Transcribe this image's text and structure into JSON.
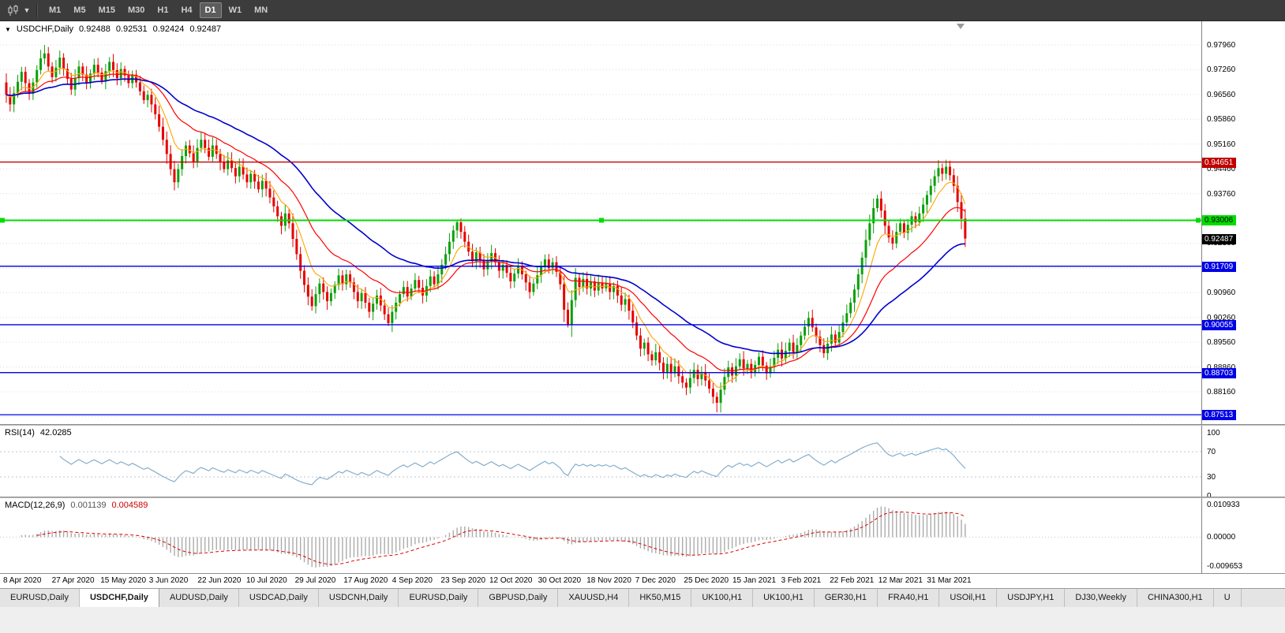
{
  "toolbar": {
    "timeframes": [
      {
        "label": "M1"
      },
      {
        "label": "M5"
      },
      {
        "label": "M15"
      },
      {
        "label": "M30"
      },
      {
        "label": "H1"
      },
      {
        "label": "H4"
      },
      {
        "label": "D1"
      },
      {
        "label": "W1"
      },
      {
        "label": "MN"
      }
    ],
    "active_timeframe": "D1"
  },
  "chart": {
    "symbol": "USDCHF,Daily",
    "open": "0.92488",
    "high": "0.92531",
    "low": "0.92424",
    "close": "0.92487",
    "current_price": "0.92487",
    "price_axis_ticks": [
      "0.97960",
      "0.97260",
      "0.96560",
      "0.95860",
      "0.95160",
      "0.94460",
      "0.93760",
      "0.93060",
      "0.92360",
      "0.91660",
      "0.90960",
      "0.90260",
      "0.89560",
      "0.88860",
      "0.88160",
      "0.87460"
    ],
    "hlines": [
      {
        "value": 0.94651,
        "label": "0.94651",
        "color": "#C00000",
        "text_color": "#ffffff",
        "handles": false
      },
      {
        "value": 0.93006,
        "label": "0.93006",
        "color": "#00DD00",
        "text_color": "#000000",
        "handles": true
      },
      {
        "value": 0.91709,
        "label": "0.91709",
        "color": "#0000E6",
        "text_color": "#ffffff",
        "handles": false
      },
      {
        "value": 0.90055,
        "label": "0.90055",
        "color": "#0000E6",
        "text_color": "#ffffff",
        "handles": false
      },
      {
        "value": 0.88703,
        "label": "0.88703",
        "color": "#0000E6",
        "text_color": "#ffffff",
        "handles": false
      },
      {
        "value": 0.87513,
        "label": "0.87513",
        "color": "#0000E6",
        "text_color": "#ffffff",
        "handles": false
      }
    ],
    "date_ticks": [
      "8 Apr 2020",
      "27 Apr 2020",
      "15 May 2020",
      "3 Jun 2020",
      "22 Jun 2020",
      "10 Jul 2020",
      "29 Jul 2020",
      "17 Aug 2020",
      "4 Sep 2020",
      "23 Sep 2020",
      "12 Oct 2020",
      "30 Oct 2020",
      "18 Nov 2020",
      "7 Dec 2020",
      "25 Dec 2020",
      "15 Jan 2021",
      "3 Feb 2021",
      "22 Feb 2021",
      "12 Mar 2021",
      "31 Mar 2021"
    ],
    "candles": {
      "first_open": 0.969,
      "closes": [
        0.9655,
        0.9628,
        0.966,
        0.9692,
        0.972,
        0.9688,
        0.9658,
        0.969,
        0.9725,
        0.9758,
        0.9772,
        0.9735,
        0.9705,
        0.9732,
        0.976,
        0.9728,
        0.97,
        0.967,
        0.9702,
        0.9735,
        0.9712,
        0.9688,
        0.9715,
        0.974,
        0.9718,
        0.9695,
        0.9722,
        0.9748,
        0.9725,
        0.9702,
        0.9728,
        0.971,
        0.9688,
        0.9712,
        0.969,
        0.9665,
        0.964,
        0.9655,
        0.9628,
        0.96,
        0.9565,
        0.9528,
        0.9488,
        0.9445,
        0.9408,
        0.9445,
        0.9482,
        0.9512,
        0.949,
        0.9465,
        0.9505,
        0.9528,
        0.9505,
        0.948,
        0.9512,
        0.9488,
        0.9465,
        0.9445,
        0.947,
        0.9448,
        0.9425,
        0.9452,
        0.943,
        0.9408,
        0.9432,
        0.941,
        0.9388,
        0.9412,
        0.939,
        0.9365,
        0.934,
        0.9312,
        0.9285,
        0.932,
        0.9292,
        0.9248,
        0.9205,
        0.9158,
        0.9118,
        0.9085,
        0.9058,
        0.9092,
        0.9122,
        0.9098,
        0.9072,
        0.9095,
        0.9118,
        0.9145,
        0.912,
        0.9148,
        0.9125,
        0.9098,
        0.9072,
        0.9095,
        0.9068,
        0.9042,
        0.9065,
        0.9088,
        0.906,
        0.9035,
        0.901,
        0.9042,
        0.9068,
        0.9092,
        0.9112,
        0.9085,
        0.9108,
        0.9132,
        0.911,
        0.9088,
        0.9115,
        0.9142,
        0.912,
        0.9148,
        0.9175,
        0.9205,
        0.924,
        0.9272,
        0.9295,
        0.9268,
        0.924,
        0.9212,
        0.9185,
        0.921,
        0.9188,
        0.9162,
        0.9185,
        0.9208,
        0.9182,
        0.9158,
        0.9175,
        0.9152,
        0.9128,
        0.915,
        0.9172,
        0.9148,
        0.9125,
        0.9098,
        0.9122,
        0.9145,
        0.9168,
        0.919,
        0.9165,
        0.9182,
        0.9155,
        0.912,
        0.9048,
        0.9005,
        0.9075,
        0.9138,
        0.9112,
        0.9135,
        0.9108,
        0.9128,
        0.9102,
        0.9125,
        0.9108,
        0.9122,
        0.9098,
        0.9115,
        0.9088,
        0.9062,
        0.9078,
        0.9045,
        0.9012,
        0.8975,
        0.8938,
        0.8955,
        0.8922,
        0.8905,
        0.8928,
        0.8898,
        0.8872,
        0.8895,
        0.8868,
        0.8888,
        0.886,
        0.8842,
        0.8828,
        0.8855,
        0.8878,
        0.8852,
        0.8872,
        0.8848,
        0.8825,
        0.8802,
        0.8785,
        0.8822,
        0.8858,
        0.8885,
        0.8862,
        0.8888,
        0.8908,
        0.8882,
        0.8895,
        0.887,
        0.8892,
        0.8915,
        0.889,
        0.8868,
        0.8888,
        0.8912,
        0.8935,
        0.891,
        0.8932,
        0.8955,
        0.8928,
        0.8948,
        0.8975,
        0.9,
        0.9025,
        0.8998,
        0.8972,
        0.8948,
        0.8925,
        0.8952,
        0.8978,
        0.8955,
        0.8985,
        0.9012,
        0.9038,
        0.9068,
        0.9105,
        0.9148,
        0.9195,
        0.9245,
        0.9292,
        0.9335,
        0.9362,
        0.9328,
        0.9285,
        0.9252,
        0.9235,
        0.9268,
        0.9292,
        0.9265,
        0.9288,
        0.9312,
        0.9295,
        0.932,
        0.9345,
        0.9372,
        0.9398,
        0.9425,
        0.9448,
        0.9432,
        0.9452,
        0.9428,
        0.9398,
        0.9352,
        0.9305,
        0.9249
      ],
      "extra_wicks": {
        "9": {
          "high": 0.9782
        },
        "10": {
          "high": 0.9796
        },
        "14": {
          "high": 0.978
        },
        "44": {
          "low": 0.9385
        },
        "100": {
          "low": 0.9002
        },
        "118": {
          "high": 0.9302
        },
        "147": {
          "low": 0.8998
        },
        "186": {
          "low": 0.8758
        },
        "244": {
          "high": 0.9471
        }
      }
    },
    "colors": {
      "up": "#0AA00A",
      "down": "#E60000",
      "ma_fast": "#FFA500",
      "ma_mid": "#FF0000",
      "ma_slow": "#0000CD",
      "grid": "#DCDCDC",
      "rsi_line": "#86AECC",
      "rsi_levels": "#BCC7D1",
      "macd_hist": "#ABABAB",
      "macd_signal": "#E00000",
      "current_price_bg": "#000000",
      "current_price_text": "#ffffff",
      "shift_marker": "#9a9a9a"
    }
  },
  "rsi": {
    "name": "RSI(14)",
    "value": "42.0285",
    "axis_labels": [
      {
        "v": 100,
        "label": "100"
      },
      {
        "v": 70,
        "label": "70"
      },
      {
        "v": 30,
        "label": "30"
      },
      {
        "v": 0,
        "label": "0"
      }
    ],
    "levels": [
      70,
      30
    ]
  },
  "macd": {
    "name": "MACD(12,26,9)",
    "main_value": "0.001139",
    "signal_value": "0.004589",
    "axis_labels": [
      {
        "v": 0.010933,
        "label": "0.010933"
      },
      {
        "v": 0,
        "label": "0.00000"
      },
      {
        "v": -0.009653,
        "label": "-0.009653"
      }
    ]
  },
  "tabs": [
    {
      "label": "EURUSD,Daily"
    },
    {
      "label": "USDCHF,Daily"
    },
    {
      "label": "AUDUSD,Daily"
    },
    {
      "label": "USDCAD,Daily"
    },
    {
      "label": "USDCNH,Daily"
    },
    {
      "label": "EURUSD,Daily"
    },
    {
      "label": "GBPUSD,Daily"
    },
    {
      "label": "XAUUSD,H4"
    },
    {
      "label": "HK50,M15"
    },
    {
      "label": "UK100,H1"
    },
    {
      "label": "UK100,H1"
    },
    {
      "label": "GER30,H1"
    },
    {
      "label": "FRA40,H1"
    },
    {
      "label": "USOil,H1"
    },
    {
      "label": "USDJPY,H1"
    },
    {
      "label": "DJ30,Weekly"
    },
    {
      "label": "CHINA300,H1"
    },
    {
      "label": "U"
    }
  ],
  "active_tab_index": 1
}
